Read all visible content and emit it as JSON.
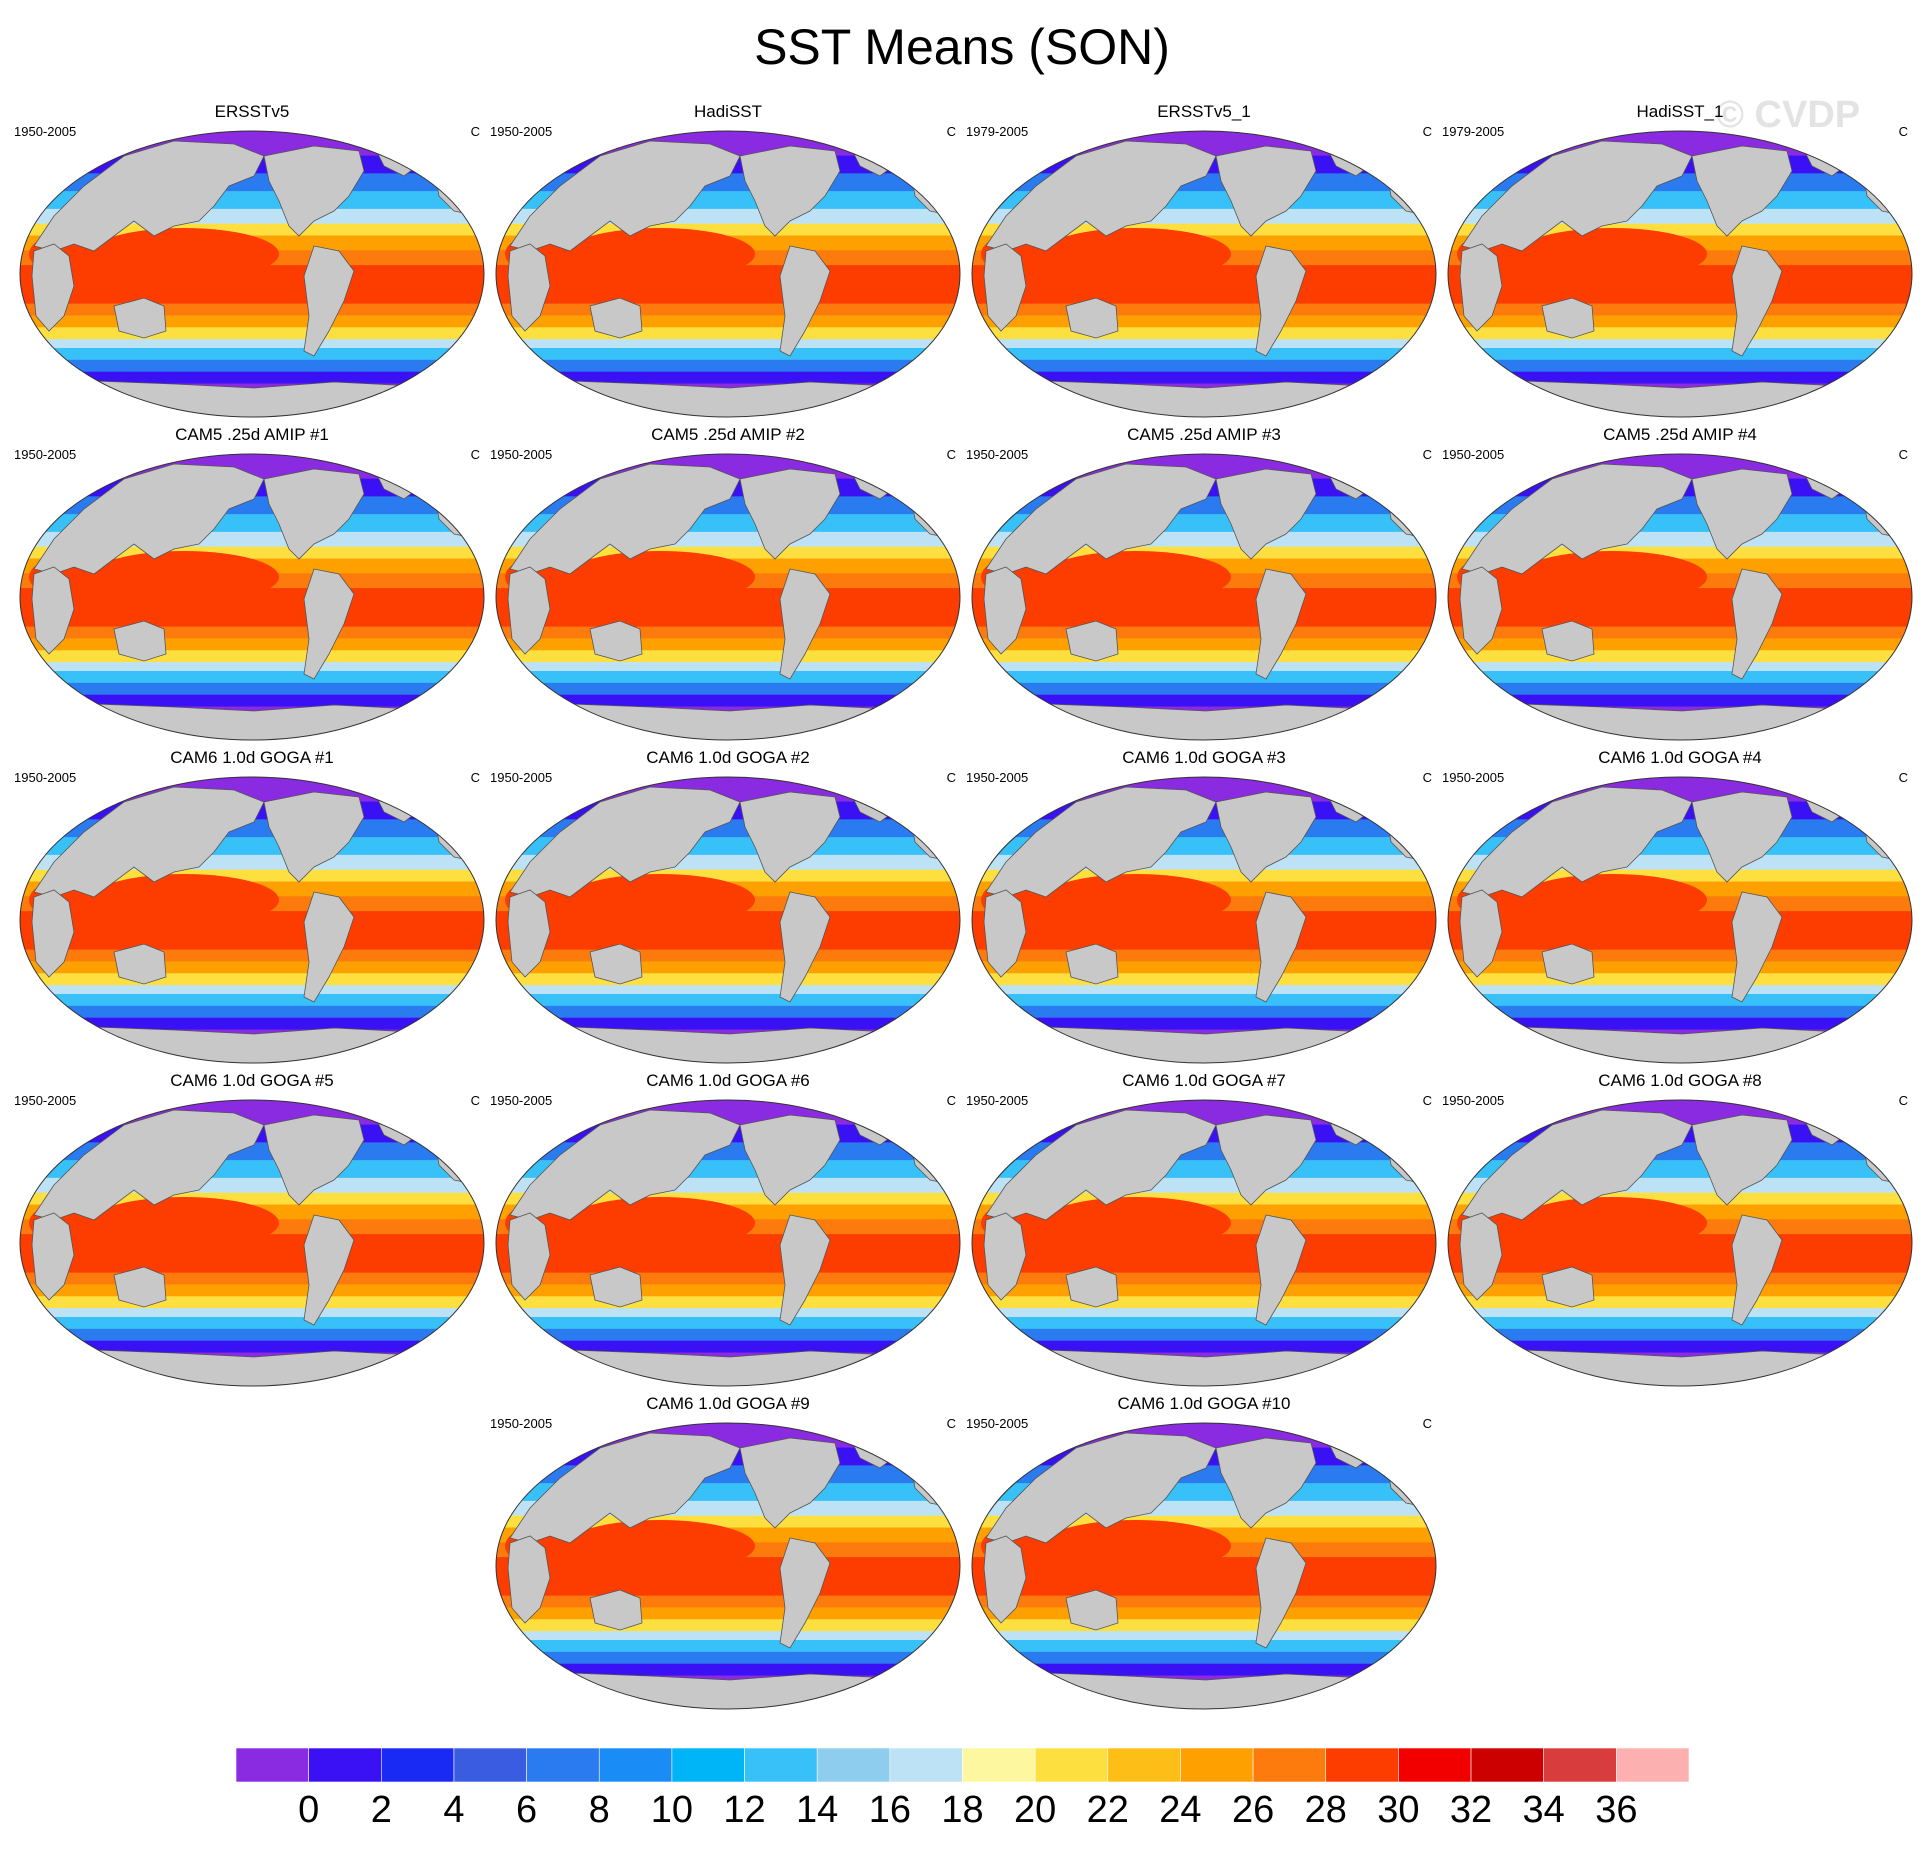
{
  "title": "SST Means (SON)",
  "watermark": "© CVDP",
  "units": "C",
  "panels": [
    {
      "title": "ERSSTv5",
      "period": "1950-2005"
    },
    {
      "title": "HadiSST",
      "period": "1950-2005"
    },
    {
      "title": "ERSSTv5_1",
      "period": "1979-2005"
    },
    {
      "title": "HadiSST_1",
      "period": "1979-2005"
    },
    {
      "title": "CAM5 .25d AMIP #1",
      "period": "1950-2005"
    },
    {
      "title": "CAM5 .25d AMIP #2",
      "period": "1950-2005"
    },
    {
      "title": "CAM5 .25d AMIP #3",
      "period": "1950-2005"
    },
    {
      "title": "CAM5 .25d AMIP #4",
      "period": "1950-2005"
    },
    {
      "title": "CAM6 1.0d GOGA #1",
      "period": "1950-2005"
    },
    {
      "title": "CAM6 1.0d GOGA #2",
      "period": "1950-2005"
    },
    {
      "title": "CAM6 1.0d GOGA #3",
      "period": "1950-2005"
    },
    {
      "title": "CAM6 1.0d GOGA #4",
      "period": "1950-2005"
    },
    {
      "title": "CAM6 1.0d GOGA #5",
      "period": "1950-2005"
    },
    {
      "title": "CAM6 1.0d GOGA #6",
      "period": "1950-2005"
    },
    {
      "title": "CAM6 1.0d GOGA #7",
      "period": "1950-2005"
    },
    {
      "title": "CAM6 1.0d GOGA #8",
      "period": "1950-2005"
    },
    {
      "title": "CAM6 1.0d GOGA #9",
      "period": "1950-2005"
    },
    {
      "title": "CAM6 1.0d GOGA #10",
      "period": "1950-2005"
    }
  ],
  "colorbar": {
    "colors": [
      "#8a2be2",
      "#3a10f5",
      "#1a2af5",
      "#3a5ce0",
      "#2a7af0",
      "#1a8cf5",
      "#00b4f8",
      "#38c0f8",
      "#8ecdee",
      "#bde2f5",
      "#fdf8a0",
      "#fde040",
      "#fdbe18",
      "#fda000",
      "#fd7a0c",
      "#fd3c00",
      "#f20000",
      "#cc0000",
      "#d83c3c",
      "#fdb0b0"
    ],
    "labels": [
      "0",
      "2",
      "4",
      "6",
      "8",
      "10",
      "12",
      "14",
      "16",
      "18",
      "20",
      "22",
      "24",
      "26",
      "28",
      "30",
      "32",
      "34",
      "36"
    ]
  },
  "map_colors": {
    "land": "#c8c8c8",
    "bands": [
      "#8a2be2",
      "#3a10f5",
      "#2a7af0",
      "#38c0f8",
      "#bde2f5",
      "#fde040",
      "#fda000",
      "#fd7a0c",
      "#fd3c00"
    ]
  }
}
